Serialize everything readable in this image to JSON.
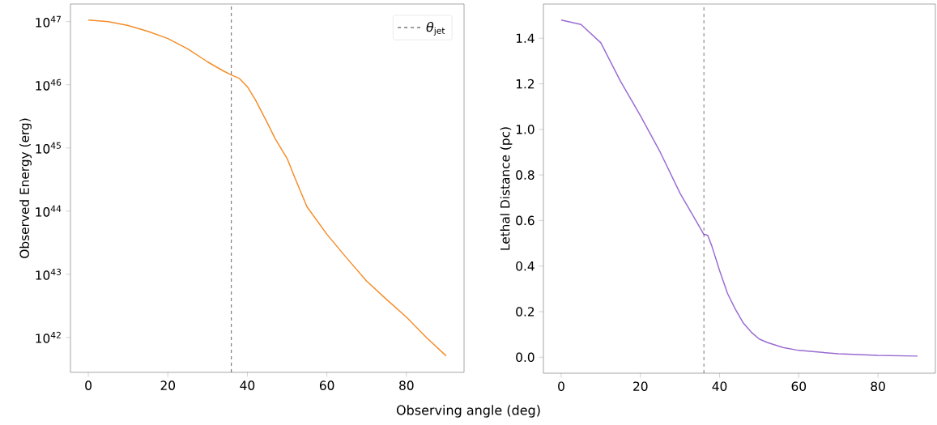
{
  "chart_data": [
    {
      "type": "line",
      "xlabel": "Observing angle (deg)",
      "ylabel": "Observed Energy (erg)",
      "log": "y",
      "legend": "top right",
      "x": [
        0,
        5,
        10,
        15,
        20,
        25,
        30,
        34,
        36,
        38,
        40,
        42,
        45,
        47,
        50,
        52,
        55,
        60,
        65,
        70,
        75,
        80,
        85,
        90
      ],
      "series": [
        {
          "color": "#f58d2a",
          "values": [
            1.06e+47,
            1e+47,
            8.7e+46,
            7e+46,
            5.4e+46,
            3.7e+46,
            2.3e+46,
            1.65e+46,
            1.43e+46,
            1.26e+46,
            9.3e+45,
            5.8e+45,
            2.5e+45,
            1.4e+45,
            6.8e+44,
            3.3e+44,
            1.17e+44,
            4.3e+43,
            1.8e+43,
            7.8e+42,
            4e+42,
            2.1e+42,
            1e+42,
            5.1e+41
          ]
        }
      ],
      "xlim": [
        -4.5,
        94.5
      ],
      "ylim": [
        2.8e+41,
        1.9e+47
      ],
      "xticks": [
        0,
        20,
        40,
        60,
        80
      ],
      "yticks": [
        {
          "value": 1e+42,
          "label": "10$^{42}$"
        },
        {
          "value": 1e+43,
          "label": "10$^{43}$"
        },
        {
          "value": 1e+44,
          "label": "10$^{44}$"
        },
        {
          "value": 1e+45,
          "label": "10$^{45}$"
        },
        {
          "value": 1e+46,
          "label": "10$^{46}$"
        },
        {
          "value": 1e+47,
          "label": "10$^{47}$"
        }
      ],
      "ref_lines": [
        {
          "axis": "x",
          "value": 36,
          "label": "*θ*$_{jet}$",
          "color": "#000000",
          "line_style": "dashed"
        }
      ]
    },
    {
      "type": "line",
      "ylabel": "Lethal Distance (pc)",
      "x": [
        0,
        5,
        10,
        15,
        20,
        25,
        30,
        34,
        36,
        37,
        38,
        40,
        42,
        44,
        46,
        48,
        50,
        52,
        56,
        60,
        70,
        80,
        90
      ],
      "series": [
        {
          "color": "#9a6bd2",
          "values": [
            1.48,
            1.46,
            1.38,
            1.21,
            1.06,
            0.9,
            0.72,
            0.6,
            0.54,
            0.535,
            0.49,
            0.38,
            0.28,
            0.21,
            0.15,
            0.11,
            0.08,
            0.065,
            0.043,
            0.03,
            0.015,
            0.008,
            0.005
          ]
        }
      ],
      "xlim": [
        -4.5,
        94.5
      ],
      "ylim": [
        -0.07,
        1.55
      ],
      "xticks": [
        0,
        20,
        40,
        60,
        80
      ],
      "yticks": [
        {
          "value": 0,
          "label": "0.0"
        },
        0.2,
        0.4,
        0.6,
        0.8,
        {
          "value": 1,
          "label": "1.0"
        },
        1.2,
        1.4
      ],
      "ref_lines": [
        {
          "axis": "x",
          "value": 36,
          "color": "#000000",
          "line_style": "dashed"
        }
      ]
    }
  ]
}
